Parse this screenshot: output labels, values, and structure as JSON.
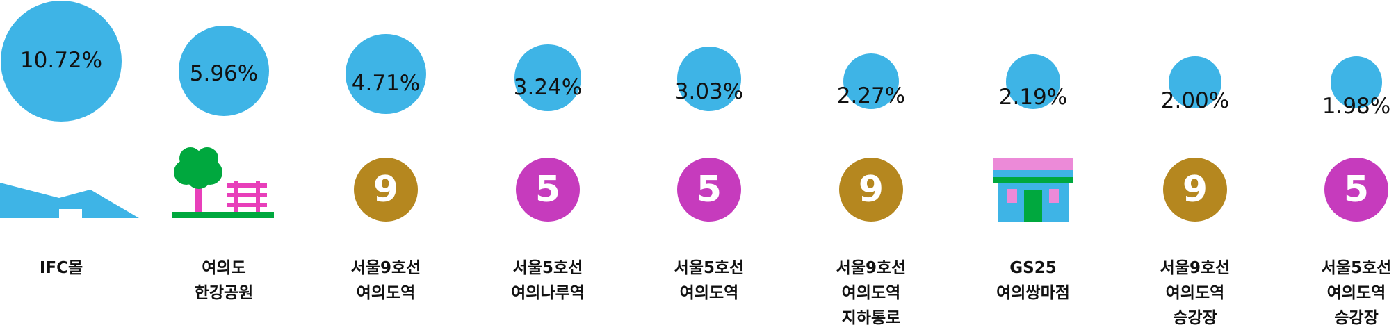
{
  "colors": {
    "bubble": "#3eb4e6",
    "line9": "#b5871f",
    "line5": "#c63bbd",
    "tree": "#00a83e",
    "pink": "#e83fba",
    "store_roof": "#ec8ad8",
    "store_green": "#00a83e"
  },
  "chart_data": {
    "type": "bubble",
    "unit": "%",
    "categories": [
      "IFC몰",
      "여의도 한강공원",
      "서울9호선 여의도역",
      "서울5호선 여의나루역",
      "서울5호선 여의도역",
      "서울9호선 여의도역 지하통로",
      "GS25 여의쌍마점",
      "서울9호선 여의도역 승강장",
      "서울5호선 여의도역 승강장"
    ],
    "values": [
      10.72,
      5.96,
      4.71,
      3.24,
      3.03,
      2.27,
      2.19,
      2.0,
      1.98
    ],
    "grid": false,
    "legend": "none"
  },
  "items": [
    {
      "value_label": "10.72%",
      "icon": "mall-icon",
      "label_lines": [
        "IFC몰"
      ]
    },
    {
      "value_label": "5.96%",
      "icon": "park-icon",
      "label_lines": [
        "여의도",
        "한강공원"
      ]
    },
    {
      "value_label": "4.71%",
      "icon": "subway-line-9-icon",
      "badge": "9",
      "label_lines": [
        "서울9호선",
        "여의도역"
      ]
    },
    {
      "value_label": "3.24%",
      "icon": "subway-line-5-icon",
      "badge": "5",
      "label_lines": [
        "서울5호선",
        "여의나루역"
      ]
    },
    {
      "value_label": "3.03%",
      "icon": "subway-line-5-icon",
      "badge": "5",
      "label_lines": [
        "서울5호선",
        "여의도역"
      ]
    },
    {
      "value_label": "2.27%",
      "icon": "subway-line-9-icon",
      "badge": "9",
      "label_lines": [
        "서울9호선",
        "여의도역",
        "지하통로"
      ]
    },
    {
      "value_label": "2.19%",
      "icon": "convenience-store-icon",
      "label_lines": [
        "GS25",
        "여의쌍마점"
      ]
    },
    {
      "value_label": "2.00%",
      "icon": "subway-line-9-icon",
      "badge": "9",
      "label_lines": [
        "서울9호선",
        "여의도역",
        "승강장"
      ]
    },
    {
      "value_label": "1.98%",
      "icon": "subway-line-5-icon",
      "badge": "5",
      "label_lines": [
        "서울5호선",
        "여의도역",
        "승강장"
      ]
    }
  ]
}
